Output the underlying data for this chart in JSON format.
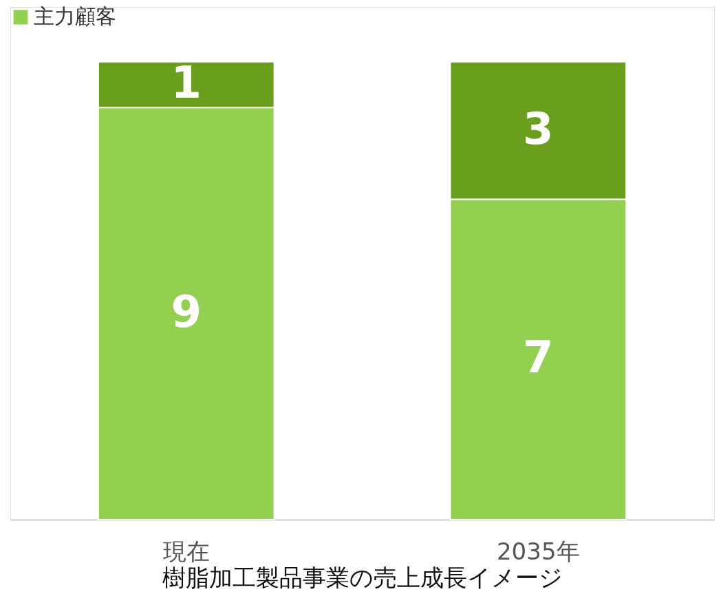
{
  "chart_data": {
    "type": "bar",
    "stacked": true,
    "title": "樹脂加工製品事業の売上成長イメージ",
    "categories": [
      "現在",
      "2035年"
    ],
    "series": [
      {
        "name": "主力顧客",
        "color": "#92d050",
        "values": [
          9,
          7
        ]
      },
      {
        "color": "#6a9f1e",
        "values": [
          1,
          3
        ]
      }
    ],
    "data_labels": true,
    "legend": "top left"
  }
}
